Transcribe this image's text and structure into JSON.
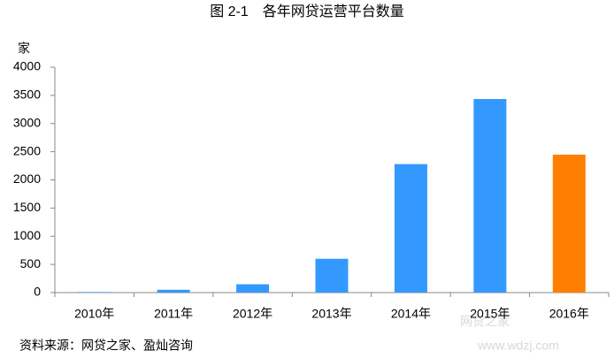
{
  "chart_data": {
    "type": "bar",
    "title": "图 2-1　各年网贷运营平台数量",
    "y_label": "家",
    "categories": [
      "2010年",
      "2011年",
      "2012年",
      "2013年",
      "2014年",
      "2015年",
      "2016年"
    ],
    "values": [
      10,
      50,
      148,
      600,
      2280,
      3435,
      2448
    ],
    "colors": [
      "#3399ff",
      "#3399ff",
      "#3399ff",
      "#3399ff",
      "#3399ff",
      "#3399ff",
      "#ff8000"
    ],
    "ylim": [
      0,
      4000
    ],
    "yticks": [
      0,
      500,
      1000,
      1500,
      2000,
      2500,
      3000,
      3500,
      4000
    ],
    "grid": false,
    "source": "资料来源：网贷之家、盈灿咨询",
    "watermark": [
      "网贷之家",
      "www.wdzj.com"
    ]
  }
}
